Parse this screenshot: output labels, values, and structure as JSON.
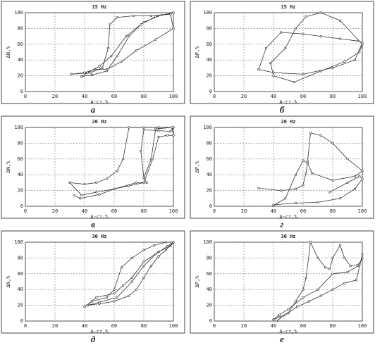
{
  "chart_data": [
    {
      "type": "line",
      "title": "15 Hz",
      "xlabel": "А-ст,%",
      "ylabel": "ΔN,%",
      "panel_label": "а",
      "xlim": [
        0,
        100
      ],
      "ylim": [
        0,
        100
      ],
      "xticks": [
        0,
        20,
        40,
        60,
        80,
        100
      ],
      "yticks": [
        0,
        20,
        40,
        60,
        80,
        100
      ],
      "grid": true,
      "series": [
        {
          "color": "#333333",
          "x": [
            31,
            40,
            47,
            55,
            65,
            75,
            88,
            100,
            98,
            85,
            73,
            62,
            57,
            56,
            52,
            44,
            31
          ],
          "values": [
            22,
            24,
            28,
            28,
            38,
            52,
            66,
            80,
            98,
            96,
            96,
            94,
            85,
            55,
            30,
            24,
            22
          ]
        },
        {
          "color": "#333333",
          "x": [
            38,
            45,
            55,
            62,
            70,
            78,
            88,
            100,
            92,
            80,
            68,
            58,
            50,
            42,
            38
          ],
          "values": [
            19,
            21,
            26,
            45,
            70,
            85,
            95,
            100,
            97,
            88,
            70,
            45,
            32,
            24,
            19
          ]
        }
      ]
    },
    {
      "type": "line",
      "title": "15 Hz",
      "xlabel": "А-ст,%",
      "ylabel": "ΔP,%",
      "panel_label": "б",
      "xlim": [
        0,
        100
      ],
      "ylim": [
        0,
        100
      ],
      "xticks": [
        0,
        20,
        40,
        60,
        80,
        100
      ],
      "yticks": [
        0,
        20,
        40,
        60,
        80,
        100
      ],
      "grid": true,
      "series": [
        {
          "color": "#333333",
          "x": [
            30,
            35,
            45,
            60,
            72,
            85,
            97,
            100,
            95,
            80,
            60,
            40,
            30
          ],
          "values": [
            28,
            55,
            75,
            73,
            70,
            67,
            64,
            62,
            40,
            30,
            22,
            24,
            28
          ]
        },
        {
          "color": "#333333",
          "x": [
            38,
            48,
            55,
            62,
            72,
            85,
            100,
            98,
            88,
            72,
            54,
            40,
            38
          ],
          "values": [
            36,
            55,
            80,
            95,
            100,
            90,
            60,
            50,
            38,
            26,
            12,
            20,
            36
          ]
        }
      ]
    },
    {
      "type": "line",
      "title": "20 Hz",
      "xlabel": "А-ст,%",
      "ylabel": "ΔN,%",
      "panel_label": "в",
      "xlim": [
        0,
        100
      ],
      "ylim": [
        0,
        100
      ],
      "xticks": [
        0,
        20,
        40,
        60,
        80,
        100
      ],
      "yticks": [
        0,
        20,
        40,
        60,
        80,
        100
      ],
      "grid": true,
      "series": [
        {
          "color": "#333333",
          "x": [
            30,
            40,
            48,
            55,
            62,
            66,
            70,
            80,
            90,
            100,
            98,
            90,
            80,
            78,
            80,
            82,
            75,
            60,
            48,
            38,
            30
          ],
          "values": [
            30,
            28,
            30,
            35,
            45,
            60,
            100,
            100,
            100,
            100,
            95,
            96,
            97,
            70,
            36,
            30,
            30,
            22,
            18,
            14,
            30
          ]
        },
        {
          "color": "#333333",
          "x": [
            33,
            37,
            50,
            60,
            70,
            80,
            86,
            90,
            96,
            100,
            99,
            88,
            85,
            80
          ],
          "values": [
            14,
            10,
            15,
            22,
            26,
            30,
            60,
            88,
            90,
            90,
            100,
            98,
            60,
            36
          ]
        }
      ]
    },
    {
      "type": "line",
      "title": "20 Hz",
      "xlabel": "А-ст,%",
      "ylabel": "ΔP,%",
      "panel_label": "г",
      "xlim": [
        0,
        100
      ],
      "ylim": [
        0,
        100
      ],
      "xticks": [
        0,
        20,
        40,
        60,
        80,
        100
      ],
      "yticks": [
        0,
        20,
        40,
        60,
        80,
        100
      ],
      "grid": true,
      "series": [
        {
          "color": "#333333",
          "x": [
            30,
            45,
            55,
            60,
            62,
            63,
            65,
            72,
            80,
            90,
            100,
            95,
            80,
            66,
            63,
            60,
            55,
            48,
            40
          ],
          "values": [
            23,
            20,
            22,
            27,
            42,
            57,
            93,
            90,
            80,
            60,
            45,
            38,
            33,
            42,
            55,
            58,
            40,
            10,
            1
          ]
        },
        {
          "color": "#333333",
          "x": [
            40,
            55,
            70,
            85,
            95,
            100,
            98,
            90,
            78
          ],
          "values": [
            2,
            4,
            5,
            10,
            22,
            35,
            38,
            30,
            18
          ]
        }
      ]
    },
    {
      "type": "line",
      "title": "30 Hz",
      "xlabel": "А-ст,%",
      "ylabel": "ΔN,%",
      "panel_label": "д",
      "xlim": [
        0,
        100
      ],
      "ylim": [
        0,
        100
      ],
      "xticks": [
        0,
        20,
        40,
        60,
        80,
        100
      ],
      "yticks": [
        0,
        20,
        40,
        60,
        80,
        100
      ],
      "grid": true,
      "series": [
        {
          "color": "#333333",
          "x": [
            40,
            45,
            55,
            60,
            65,
            72,
            80,
            87,
            95,
            100,
            98,
            90,
            80,
            72,
            66,
            60,
            48,
            40
          ],
          "values": [
            18,
            25,
            30,
            40,
            68,
            80,
            90,
            96,
            100,
            100,
            95,
            88,
            75,
            55,
            45,
            35,
            30,
            18
          ]
        },
        {
          "color": "#333333",
          "x": [
            42,
            50,
            60,
            70,
            75,
            80,
            85,
            90,
            95,
            100,
            96,
            88,
            80,
            72,
            62,
            50,
            42
          ],
          "values": [
            20,
            22,
            25,
            32,
            40,
            55,
            70,
            82,
            90,
            100,
            95,
            85,
            70,
            50,
            30,
            24,
            20
          ]
        }
      ]
    },
    {
      "type": "line",
      "title": "30 Hz",
      "xlabel": "А-ст,%",
      "ylabel": "ΔP,%",
      "panel_label": "е",
      "xlim": [
        0,
        100
      ],
      "ylim": [
        0,
        100
      ],
      "xticks": [
        0,
        20,
        40,
        60,
        80,
        100
      ],
      "yticks": [
        0,
        20,
        40,
        60,
        80,
        100
      ],
      "grid": true,
      "series": [
        {
          "color": "#333333",
          "x": [
            40,
            44,
            50,
            55,
            60,
            62,
            65,
            70,
            75,
            78,
            80,
            85,
            88,
            92,
            98,
            100,
            97,
            90,
            80,
            70,
            60,
            50,
            44,
            40
          ],
          "values": [
            2,
            5,
            10,
            25,
            40,
            55,
            100,
            80,
            68,
            66,
            80,
            96,
            80,
            70,
            72,
            80,
            70,
            62,
            60,
            40,
            30,
            15,
            8,
            2
          ]
        },
        {
          "color": "#333333",
          "x": [
            42,
            48,
            56,
            64,
            72,
            80,
            88,
            96,
            100
          ],
          "values": [
            0,
            8,
            18,
            25,
            32,
            40,
            48,
            52,
            85
          ]
        }
      ]
    }
  ]
}
